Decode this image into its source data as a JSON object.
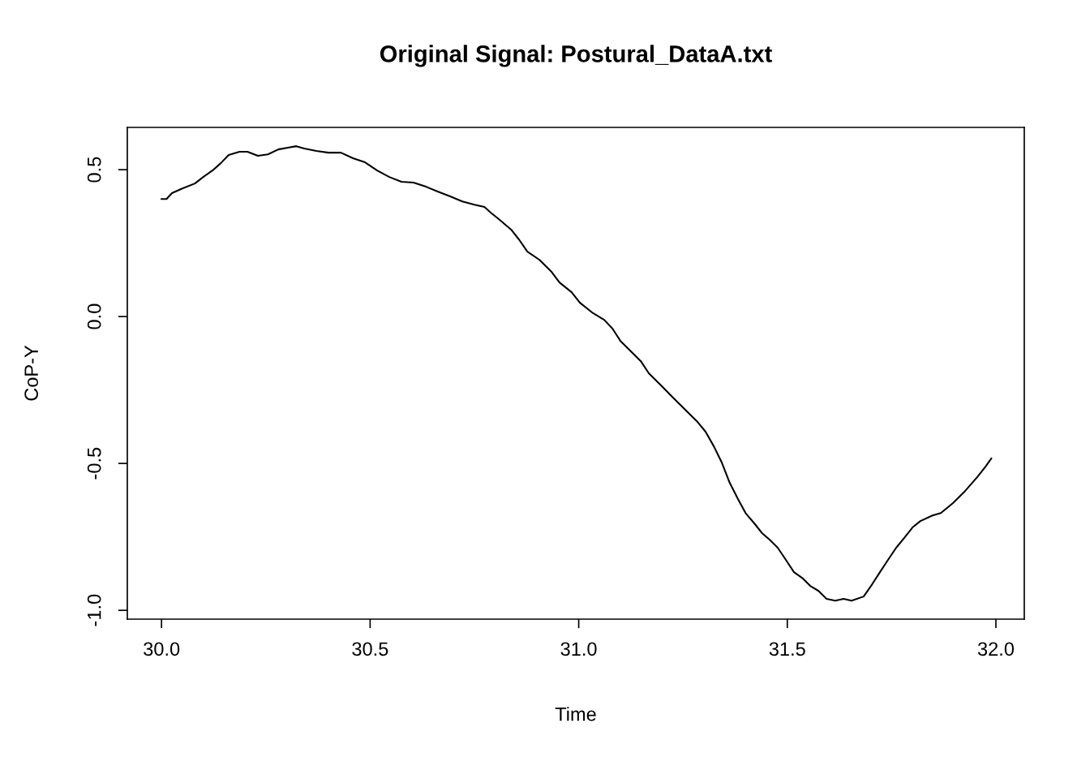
{
  "chart_data": {
    "type": "line",
    "title": "Original Signal: Postural_DataA.txt",
    "xlabel": "Time",
    "ylabel": "CoP-Y",
    "x": [
      30.0,
      30.012,
      30.025,
      30.05,
      30.08,
      30.1,
      30.122,
      30.142,
      30.161,
      30.187,
      30.206,
      30.231,
      30.255,
      30.28,
      30.303,
      30.323,
      30.342,
      30.371,
      30.4,
      30.43,
      30.459,
      30.488,
      30.517,
      30.546,
      30.575,
      30.604,
      30.634,
      30.663,
      30.692,
      30.721,
      30.75,
      30.774,
      30.789,
      30.809,
      30.838,
      30.857,
      30.877,
      30.906,
      30.935,
      30.954,
      30.983,
      31.003,
      31.032,
      31.061,
      31.081,
      31.1,
      31.129,
      31.149,
      31.168,
      31.198,
      31.226,
      31.256,
      31.285,
      31.304,
      31.324,
      31.343,
      31.362,
      31.382,
      31.4,
      31.421,
      31.44,
      31.458,
      31.477,
      31.497,
      31.516,
      31.536,
      31.555,
      31.575,
      31.594,
      31.615,
      31.635,
      31.654,
      31.683,
      31.703,
      31.722,
      31.741,
      31.761,
      31.78,
      31.8,
      31.819,
      31.848,
      31.868,
      31.897,
      31.926,
      31.955,
      31.975,
      31.989
    ],
    "series": [
      {
        "color": "#000000",
        "values": [
          0.4,
          0.4,
          0.42,
          0.436,
          0.453,
          0.475,
          0.497,
          0.522,
          0.55,
          0.561,
          0.561,
          0.547,
          0.552,
          0.569,
          0.575,
          0.58,
          0.572,
          0.564,
          0.558,
          0.558,
          0.539,
          0.525,
          0.497,
          0.475,
          0.459,
          0.456,
          0.442,
          0.425,
          0.409,
          0.392,
          0.381,
          0.373,
          0.354,
          0.331,
          0.296,
          0.262,
          0.221,
          0.193,
          0.152,
          0.116,
          0.083,
          0.047,
          0.014,
          -0.011,
          -0.041,
          -0.083,
          -0.124,
          -0.152,
          -0.193,
          -0.235,
          -0.276,
          -0.318,
          -0.359,
          -0.392,
          -0.442,
          -0.497,
          -0.566,
          -0.622,
          -0.669,
          -0.704,
          -0.738,
          -0.76,
          -0.787,
          -0.829,
          -0.87,
          -0.89,
          -0.917,
          -0.934,
          -0.961,
          -0.967,
          -0.961,
          -0.967,
          -0.953,
          -0.912,
          -0.87,
          -0.829,
          -0.787,
          -0.754,
          -0.718,
          -0.696,
          -0.677,
          -0.669,
          -0.635,
          -0.594,
          -0.547,
          -0.511,
          -0.483
        ]
      }
    ],
    "xlim": [
      29.918,
      32.068
    ],
    "ylim": [
      -1.03,
      0.644
    ],
    "xticks": [
      {
        "value": 30,
        "label": "30.0"
      },
      {
        "value": 30.5,
        "label": "30.5"
      },
      {
        "value": 31,
        "label": "31.0"
      },
      {
        "value": 31.5,
        "label": "31.5"
      },
      {
        "value": 32,
        "label": "32.0"
      }
    ],
    "yticks": [
      {
        "value": -1,
        "label": "-1.0"
      },
      {
        "value": -0.5,
        "label": "-0.5"
      },
      {
        "value": 0,
        "label": "0.0"
      },
      {
        "value": 0.5,
        "label": "0.5"
      }
    ],
    "grid": false,
    "legend": false
  }
}
